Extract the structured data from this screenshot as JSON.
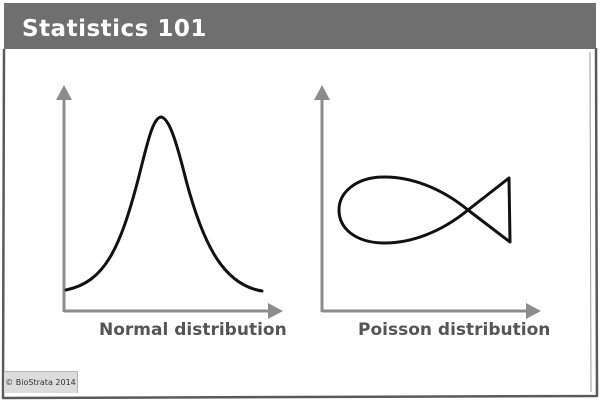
{
  "header": {
    "title": "Statistics 101"
  },
  "panels": [
    {
      "caption": "Normal distribution",
      "curve": "bell-curve"
    },
    {
      "caption": "Poisson distribution",
      "curve": "fish"
    }
  ],
  "footer": {
    "copyright": "© BioStrata 2014"
  },
  "colors": {
    "header_bg": "#6f6f6f",
    "stroke": "#111111",
    "axis": "#8c8c8c",
    "caption_text": "#555555",
    "frame": "#5a5a5a"
  }
}
